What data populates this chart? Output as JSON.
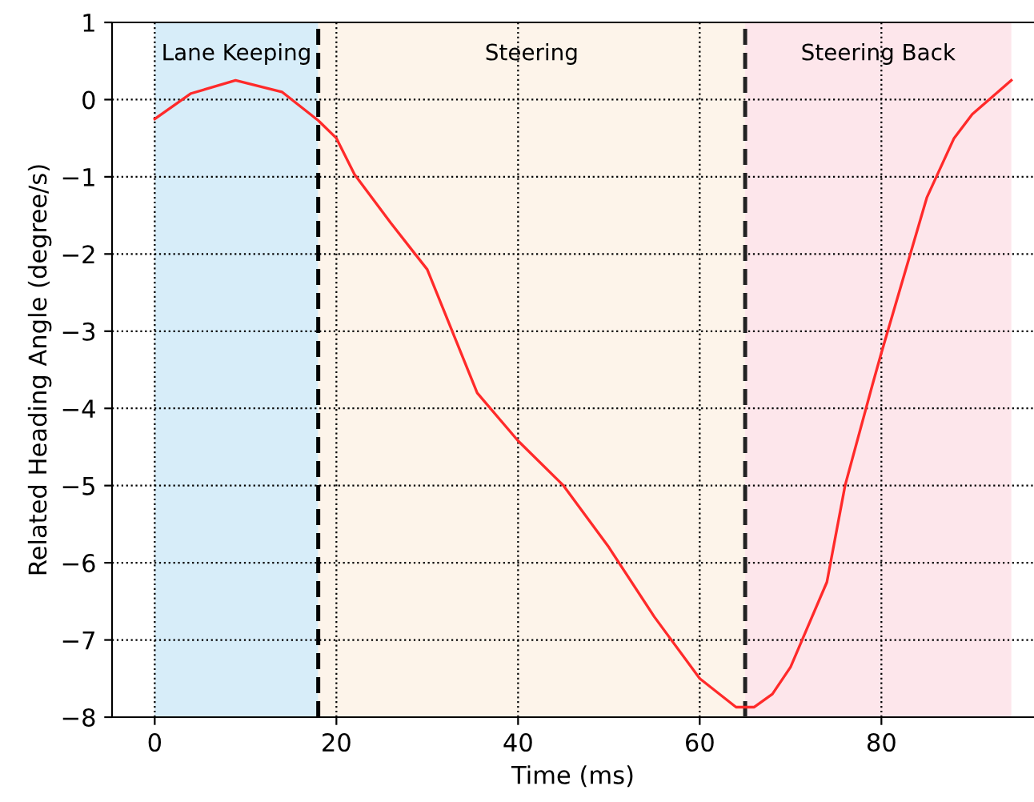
{
  "chart_data": {
    "type": "line",
    "xlabel": "Time (ms)",
    "ylabel": "Related Heading Angle (degree/s)",
    "x": [
      0,
      4,
      8.9,
      14,
      18,
      20,
      22,
      26,
      30,
      35.5,
      40,
      45,
      50,
      55,
      60,
      64,
      66,
      68,
      70,
      74,
      76,
      79,
      80,
      85,
      88,
      90,
      94.3
    ],
    "series": [
      {
        "color": "#ff2a2a",
        "values": [
          -0.25,
          0.08,
          0.25,
          0.1,
          -0.27,
          -0.5,
          -0.97,
          -1.6,
          -2.2,
          -3.8,
          -4.42,
          -5.0,
          -5.8,
          -6.7,
          -7.5,
          -7.87,
          -7.87,
          -7.7,
          -7.35,
          -6.25,
          -5.0,
          -3.7,
          -3.28,
          -1.27,
          -0.5,
          -0.19,
          0.25
        ]
      }
    ],
    "xlim": [
      -4.7,
      96.8
    ],
    "ylim": [
      -8,
      1
    ],
    "xticks": [
      0,
      20,
      40,
      60,
      80
    ],
    "yticks": [
      -8,
      -7,
      -6,
      -5,
      -4,
      -3,
      -2,
      -1,
      0,
      1
    ],
    "grid": true,
    "line_style": "solid",
    "bands": [
      {
        "axis": "x",
        "from": 0,
        "to": 18,
        "label": "Lane Keeping",
        "color": "#d7edf9"
      },
      {
        "axis": "x",
        "from": 18,
        "to": 65,
        "label": "Steering",
        "color": "#fdf4ea"
      },
      {
        "axis": "x",
        "from": 65,
        "to": 94.3,
        "label": "Steering Back",
        "color": "#fde6eb"
      }
    ],
    "ref_lines": [
      {
        "axis": "x",
        "value": 18,
        "color": "#000000",
        "line_style": "dashed"
      },
      {
        "axis": "x",
        "value": 65,
        "color": "#222222",
        "line_style": "dashed"
      }
    ]
  }
}
